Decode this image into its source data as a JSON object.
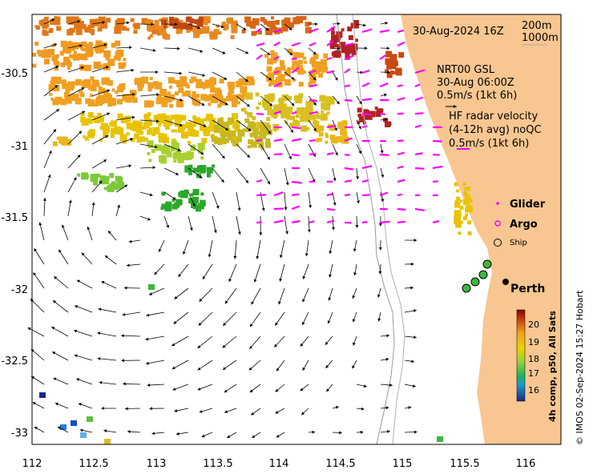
{
  "map": {
    "date_label": "30-Aug-2024 16Z",
    "contour_labels": [
      "200m",
      "1000m"
    ],
    "gsl_label": [
      "NRT00 GSL",
      "30-Aug 06:00Z",
      "0.5m/s (1kt 6h)"
    ],
    "hf_label": [
      "HF radar velocity",
      "(4-12h avg) noQC",
      "0.5m/s (1kt 6h)"
    ],
    "legend": {
      "glider": "Glider",
      "argo": "Argo",
      "ship": "Ship"
    },
    "city": "Perth",
    "colorbar": {
      "ticks": [
        "20",
        "19",
        "18",
        "17",
        "16"
      ],
      "title": "4h comp, p50, All Sats"
    },
    "credit": "© IMOS 02-Sep-2024 15:27 Hobart",
    "x_ticks": [
      "112",
      "112.5",
      "113",
      "113.5",
      "114",
      "114.5",
      "115",
      "115.5",
      "116"
    ],
    "y_ticks": [
      "-30.5",
      "-31",
      "-31.5",
      "-32",
      "-32.5",
      "-33"
    ],
    "colors": {
      "land": "#f8c690",
      "radar_arrows": "#ff00ff",
      "sst_warm": "#b22222",
      "sst_mid": "#e8c400",
      "sst_cool": "#2aa82a"
    }
  }
}
